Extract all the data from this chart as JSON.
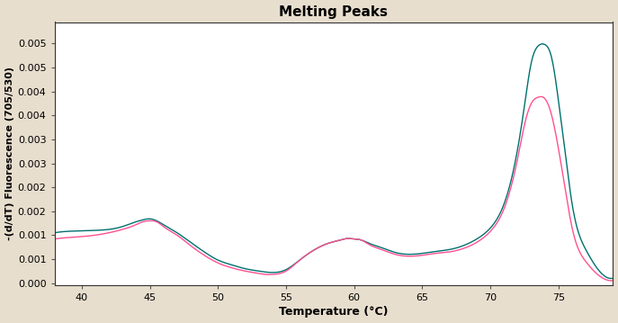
{
  "title": "Melting Peaks",
  "xlabel": "Temperature (°C)",
  "ylabel": "-(d/dT) Fluorescence (705/530)",
  "xlim": [
    38,
    79
  ],
  "ylim": [
    -5e-05,
    0.00545
  ],
  "bg_color": "#e8dece",
  "plot_bg": "#ffffff",
  "line1_color": "#007070",
  "line2_color": "#ff5090",
  "xticks": [
    40,
    45,
    50,
    55,
    60,
    65,
    70,
    75
  ],
  "ytick_positions": [
    0.0,
    0.0005,
    0.001,
    0.0015,
    0.002,
    0.0025,
    0.003,
    0.0035,
    0.004,
    0.0045,
    0.005
  ],
  "ytick_labels": [
    "0.000",
    "0.001",
    "0.001",
    "0.002",
    "0.002",
    "0.003",
    "0.003",
    "0.004",
    "0.004",
    "0.005",
    "0.005"
  ],
  "curve1_x": [
    38.0,
    39.0,
    40.0,
    41.0,
    42.0,
    43.0,
    44.0,
    44.5,
    45.0,
    45.5,
    46.0,
    47.0,
    48.0,
    49.0,
    50.0,
    51.0,
    52.0,
    53.0,
    53.5,
    54.0,
    55.0,
    56.0,
    57.0,
    58.0,
    59.0,
    59.5,
    60.0,
    60.5,
    61.0,
    62.0,
    63.0,
    64.0,
    65.0,
    65.5,
    66.0,
    67.0,
    68.0,
    69.0,
    70.0,
    71.0,
    72.0,
    72.5,
    73.0,
    73.5,
    74.0,
    74.5,
    75.0,
    75.5,
    76.0,
    77.0,
    78.0,
    79.0
  ],
  "curve1_y": [
    0.00105,
    0.00108,
    0.00109,
    0.0011,
    0.00112,
    0.00118,
    0.00128,
    0.00132,
    0.00134,
    0.0013,
    0.00122,
    0.00105,
    0.00085,
    0.00065,
    0.00048,
    0.00038,
    0.0003,
    0.00025,
    0.00023,
    0.00022,
    0.00028,
    0.00048,
    0.00068,
    0.00082,
    0.0009,
    0.00093,
    0.00092,
    0.0009,
    0.00084,
    0.00074,
    0.00064,
    0.0006,
    0.00062,
    0.00064,
    0.00066,
    0.0007,
    0.00078,
    0.00092,
    0.00115,
    0.00165,
    0.0028,
    0.0037,
    0.0046,
    0.00495,
    0.00498,
    0.0047,
    0.0038,
    0.0027,
    0.00165,
    0.0007,
    0.00025,
    0.0001
  ],
  "curve2_x": [
    38.0,
    39.0,
    40.0,
    41.0,
    42.0,
    43.0,
    44.0,
    44.5,
    45.0,
    45.5,
    46.0,
    47.0,
    48.0,
    49.0,
    50.0,
    51.0,
    52.0,
    53.0,
    53.5,
    54.0,
    55.0,
    56.0,
    57.0,
    58.0,
    59.0,
    59.5,
    60.0,
    60.5,
    61.0,
    62.0,
    63.0,
    64.0,
    65.0,
    65.5,
    66.0,
    67.0,
    68.0,
    69.0,
    70.0,
    71.0,
    72.0,
    72.5,
    73.0,
    73.5,
    74.0,
    74.5,
    75.0,
    75.5,
    76.0,
    77.0,
    78.0,
    79.0
  ],
  "curve2_y": [
    0.00092,
    0.00095,
    0.00097,
    0.001,
    0.00105,
    0.00112,
    0.00122,
    0.00128,
    0.0013,
    0.00128,
    0.00118,
    0.001,
    0.00078,
    0.00058,
    0.00042,
    0.00032,
    0.00025,
    0.0002,
    0.00018,
    0.00018,
    0.00025,
    0.00048,
    0.00068,
    0.00082,
    0.0009,
    0.00093,
    0.00092,
    0.0009,
    0.00082,
    0.0007,
    0.0006,
    0.00056,
    0.00058,
    0.0006,
    0.00062,
    0.00065,
    0.00072,
    0.00085,
    0.00108,
    0.00155,
    0.0026,
    0.0033,
    0.00375,
    0.00388,
    0.00385,
    0.0035,
    0.0028,
    0.00195,
    0.00115,
    0.00045,
    0.00015,
    5e-05
  ]
}
